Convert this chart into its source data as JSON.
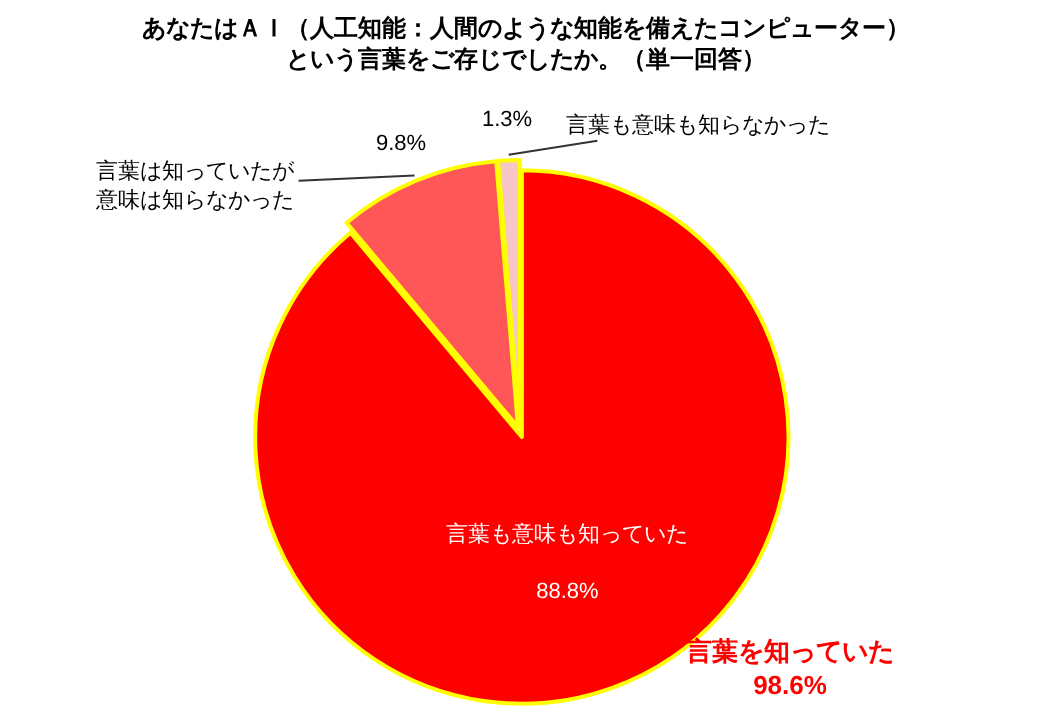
{
  "chart_data": {
    "type": "pie",
    "title": "あなたはＡＩ（人工知能：人間のような知能を備えたコンピューター）という言葉をご存じでしたか。（単一回答）",
    "categories": [
      "言葉も意味も知っていた",
      "言葉は知っていたが意味は知らなかった",
      "言葉も意味も知らなかった"
    ],
    "values": [
      88.8,
      9.8,
      1.3
    ],
    "value_labels": [
      "88.8%",
      "9.8%",
      "1.3%"
    ],
    "colors": [
      "#ff0000",
      "#ff5757",
      "#f7c6c6"
    ],
    "annotations": [
      "言葉を知っていた\n98.6%"
    ],
    "legend": false
  }
}
